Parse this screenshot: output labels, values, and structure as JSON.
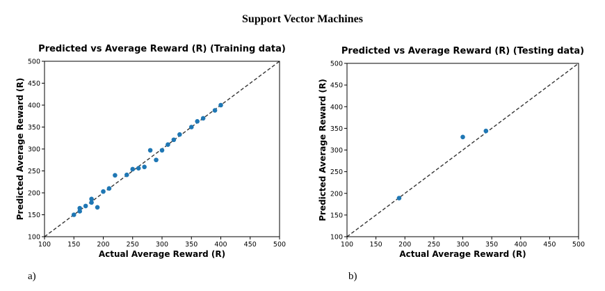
{
  "figure": {
    "title": "Support Vector Machines",
    "panel_a": "a)",
    "panel_b": "b)"
  },
  "chart_data": [
    {
      "type": "scatter",
      "title": "Predicted vs Average Reward (R) (Training data)",
      "xlabel": "Actual Average Reward (R)",
      "ylabel": "Predicted Average Reward (R)",
      "xlim": [
        100,
        500
      ],
      "ylim": [
        100,
        500
      ],
      "xticks": [
        100,
        150,
        200,
        250,
        300,
        350,
        400,
        450,
        500
      ],
      "yticks": [
        100,
        150,
        200,
        250,
        300,
        350,
        400,
        450,
        500
      ],
      "reference_line": "y = x (dashed)",
      "marker_color": "#1f77b4",
      "points": [
        {
          "x": 150,
          "y": 150
        },
        {
          "x": 160,
          "y": 158
        },
        {
          "x": 160,
          "y": 165
        },
        {
          "x": 170,
          "y": 170
        },
        {
          "x": 180,
          "y": 178
        },
        {
          "x": 180,
          "y": 186
        },
        {
          "x": 190,
          "y": 167
        },
        {
          "x": 200,
          "y": 203
        },
        {
          "x": 210,
          "y": 210
        },
        {
          "x": 220,
          "y": 240
        },
        {
          "x": 240,
          "y": 241
        },
        {
          "x": 250,
          "y": 254
        },
        {
          "x": 260,
          "y": 256
        },
        {
          "x": 270,
          "y": 259
        },
        {
          "x": 280,
          "y": 297
        },
        {
          "x": 290,
          "y": 275
        },
        {
          "x": 300,
          "y": 297
        },
        {
          "x": 310,
          "y": 310
        },
        {
          "x": 320,
          "y": 321
        },
        {
          "x": 330,
          "y": 333
        },
        {
          "x": 350,
          "y": 350
        },
        {
          "x": 360,
          "y": 363
        },
        {
          "x": 370,
          "y": 370
        },
        {
          "x": 390,
          "y": 388
        },
        {
          "x": 400,
          "y": 400
        }
      ]
    },
    {
      "type": "scatter",
      "title": "Predicted vs Average Reward (R) (Testing data)",
      "xlabel": "Actual Average Reward (R)",
      "ylabel": "Predicted Average Reward (R)",
      "xlim": [
        100,
        500
      ],
      "ylim": [
        100,
        500
      ],
      "xticks": [
        100,
        150,
        200,
        250,
        300,
        350,
        400,
        450,
        500
      ],
      "yticks": [
        100,
        150,
        200,
        250,
        300,
        350,
        400,
        450,
        500
      ],
      "reference_line": "y = x (dashed)",
      "marker_color": "#1f77b4",
      "points": [
        {
          "x": 190,
          "y": 189
        },
        {
          "x": 300,
          "y": 330
        },
        {
          "x": 340,
          "y": 344
        }
      ]
    }
  ]
}
